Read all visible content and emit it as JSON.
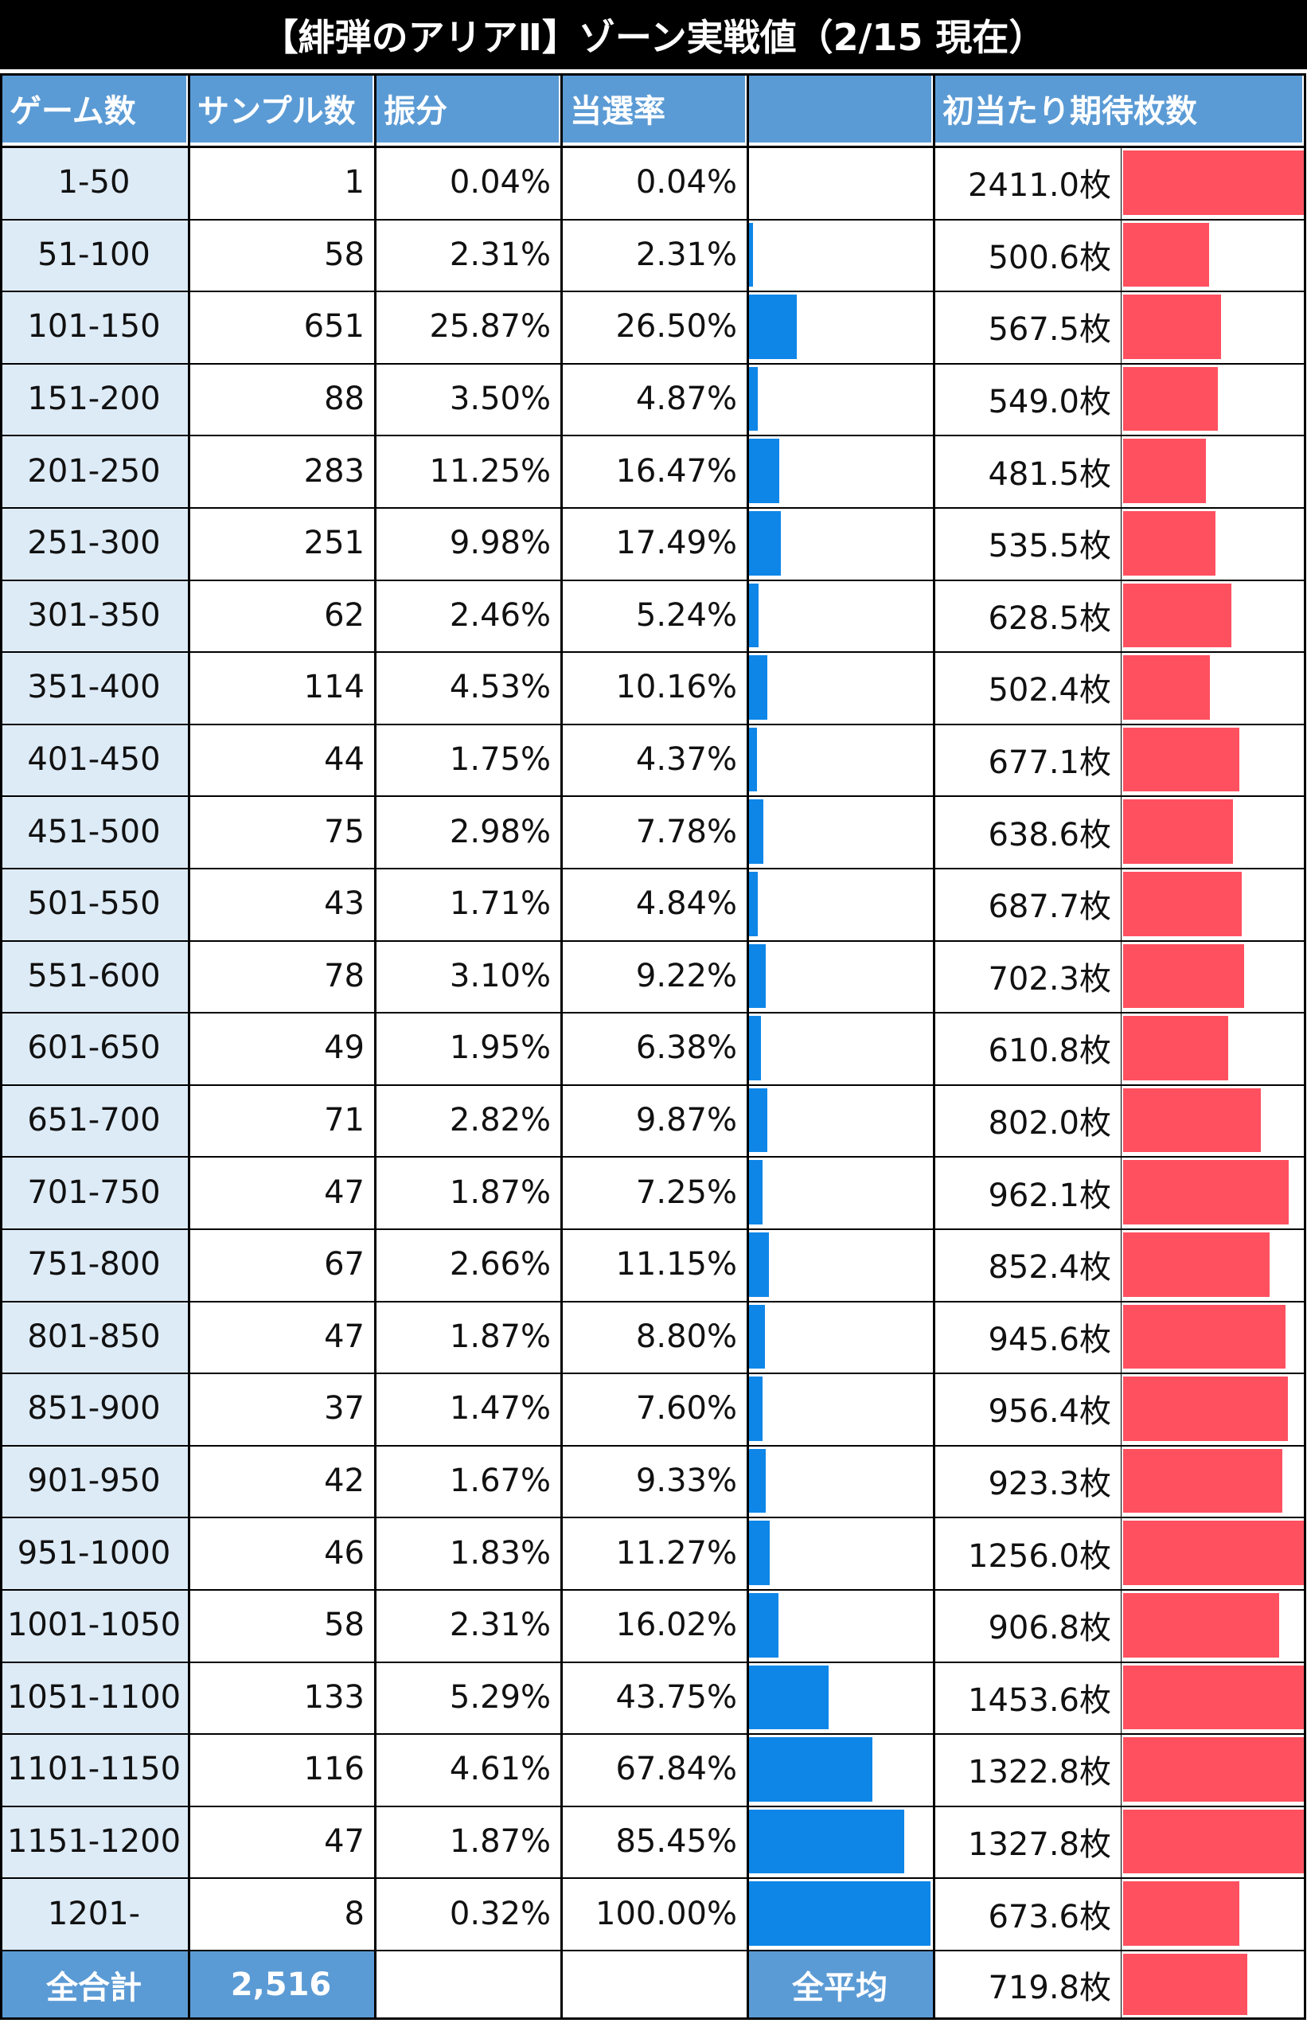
{
  "title": "【緋弾のアリアⅡ】ゾーン実戦値（2/15 現在）",
  "colors": {
    "header_bg": "#5b9bd5",
    "zone_bg": "#ddebf7",
    "blue_bar": "#0e86e8",
    "red_bar": "#ff5060",
    "title_bg": "#000000"
  },
  "headers": [
    "ゲーム数",
    "サンプル数",
    "振分",
    "当選率",
    "",
    "初当たり期待枚数"
  ],
  "chart_data": {
    "type": "table",
    "title": "【緋弾のアリアⅡ】ゾーン実戦値（2/15 現在）",
    "columns": [
      "ゲーム数",
      "サンプル数",
      "振分",
      "当選率",
      "初当たり期待枚数"
    ],
    "rows": [
      {
        "zone": "1-50",
        "samples": "1",
        "share": "0.04%",
        "rate": "0.04%",
        "rate_value": 0.04,
        "expected": "2411.0枚",
        "expected_value": 2411.0
      },
      {
        "zone": "51-100",
        "samples": "58",
        "share": "2.31%",
        "rate": "2.31%",
        "rate_value": 2.31,
        "expected": "500.6枚",
        "expected_value": 500.6
      },
      {
        "zone": "101-150",
        "samples": "651",
        "share": "25.87%",
        "rate": "26.50%",
        "rate_value": 26.5,
        "expected": "567.5枚",
        "expected_value": 567.5
      },
      {
        "zone": "151-200",
        "samples": "88",
        "share": "3.50%",
        "rate": "4.87%",
        "rate_value": 4.87,
        "expected": "549.0枚",
        "expected_value": 549.0
      },
      {
        "zone": "201-250",
        "samples": "283",
        "share": "11.25%",
        "rate": "16.47%",
        "rate_value": 16.47,
        "expected": "481.5枚",
        "expected_value": 481.5
      },
      {
        "zone": "251-300",
        "samples": "251",
        "share": "9.98%",
        "rate": "17.49%",
        "rate_value": 17.49,
        "expected": "535.5枚",
        "expected_value": 535.5
      },
      {
        "zone": "301-350",
        "samples": "62",
        "share": "2.46%",
        "rate": "5.24%",
        "rate_value": 5.24,
        "expected": "628.5枚",
        "expected_value": 628.5
      },
      {
        "zone": "351-400",
        "samples": "114",
        "share": "4.53%",
        "rate": "10.16%",
        "rate_value": 10.16,
        "expected": "502.4枚",
        "expected_value": 502.4
      },
      {
        "zone": "401-450",
        "samples": "44",
        "share": "1.75%",
        "rate": "4.37%",
        "rate_value": 4.37,
        "expected": "677.1枚",
        "expected_value": 677.1
      },
      {
        "zone": "451-500",
        "samples": "75",
        "share": "2.98%",
        "rate": "7.78%",
        "rate_value": 7.78,
        "expected": "638.6枚",
        "expected_value": 638.6
      },
      {
        "zone": "501-550",
        "samples": "43",
        "share": "1.71%",
        "rate": "4.84%",
        "rate_value": 4.84,
        "expected": "687.7枚",
        "expected_value": 687.7
      },
      {
        "zone": "551-600",
        "samples": "78",
        "share": "3.10%",
        "rate": "9.22%",
        "rate_value": 9.22,
        "expected": "702.3枚",
        "expected_value": 702.3
      },
      {
        "zone": "601-650",
        "samples": "49",
        "share": "1.95%",
        "rate": "6.38%",
        "rate_value": 6.38,
        "expected": "610.8枚",
        "expected_value": 610.8
      },
      {
        "zone": "651-700",
        "samples": "71",
        "share": "2.82%",
        "rate": "9.87%",
        "rate_value": 9.87,
        "expected": "802.0枚",
        "expected_value": 802.0
      },
      {
        "zone": "701-750",
        "samples": "47",
        "share": "1.87%",
        "rate": "7.25%",
        "rate_value": 7.25,
        "expected": "962.1枚",
        "expected_value": 962.1
      },
      {
        "zone": "751-800",
        "samples": "67",
        "share": "2.66%",
        "rate": "11.15%",
        "rate_value": 11.15,
        "expected": "852.4枚",
        "expected_value": 852.4
      },
      {
        "zone": "801-850",
        "samples": "47",
        "share": "1.87%",
        "rate": "8.80%",
        "rate_value": 8.8,
        "expected": "945.6枚",
        "expected_value": 945.6
      },
      {
        "zone": "851-900",
        "samples": "37",
        "share": "1.47%",
        "rate": "7.60%",
        "rate_value": 7.6,
        "expected": "956.4枚",
        "expected_value": 956.4
      },
      {
        "zone": "901-950",
        "samples": "42",
        "share": "1.67%",
        "rate": "9.33%",
        "rate_value": 9.33,
        "expected": "923.3枚",
        "expected_value": 923.3
      },
      {
        "zone": "951-1000",
        "samples": "46",
        "share": "1.83%",
        "rate": "11.27%",
        "rate_value": 11.27,
        "expected": "1256.0枚",
        "expected_value": 1256.0
      },
      {
        "zone": "1001-1050",
        "samples": "58",
        "share": "2.31%",
        "rate": "16.02%",
        "rate_value": 16.02,
        "expected": "906.8枚",
        "expected_value": 906.8
      },
      {
        "zone": "1051-1100",
        "samples": "133",
        "share": "5.29%",
        "rate": "43.75%",
        "rate_value": 43.75,
        "expected": "1453.6枚",
        "expected_value": 1453.6
      },
      {
        "zone": "1101-1150",
        "samples": "116",
        "share": "4.61%",
        "rate": "67.84%",
        "rate_value": 67.84,
        "expected": "1322.8枚",
        "expected_value": 1322.8
      },
      {
        "zone": "1151-1200",
        "samples": "47",
        "share": "1.87%",
        "rate": "85.45%",
        "rate_value": 85.45,
        "expected": "1327.8枚",
        "expected_value": 1327.8
      },
      {
        "zone": "1201-",
        "samples": "8",
        "share": "0.32%",
        "rate": "100.00%",
        "rate_value": 100.0,
        "expected": "673.6枚",
        "expected_value": 673.6
      }
    ],
    "rate_bar_max": 100,
    "expected_bar_max": 1050
  },
  "footer": {
    "total_label": "全合計",
    "total_samples": "2,516",
    "average_label": "全平均",
    "average_expected": "719.8枚",
    "average_expected_value": 719.8
  }
}
